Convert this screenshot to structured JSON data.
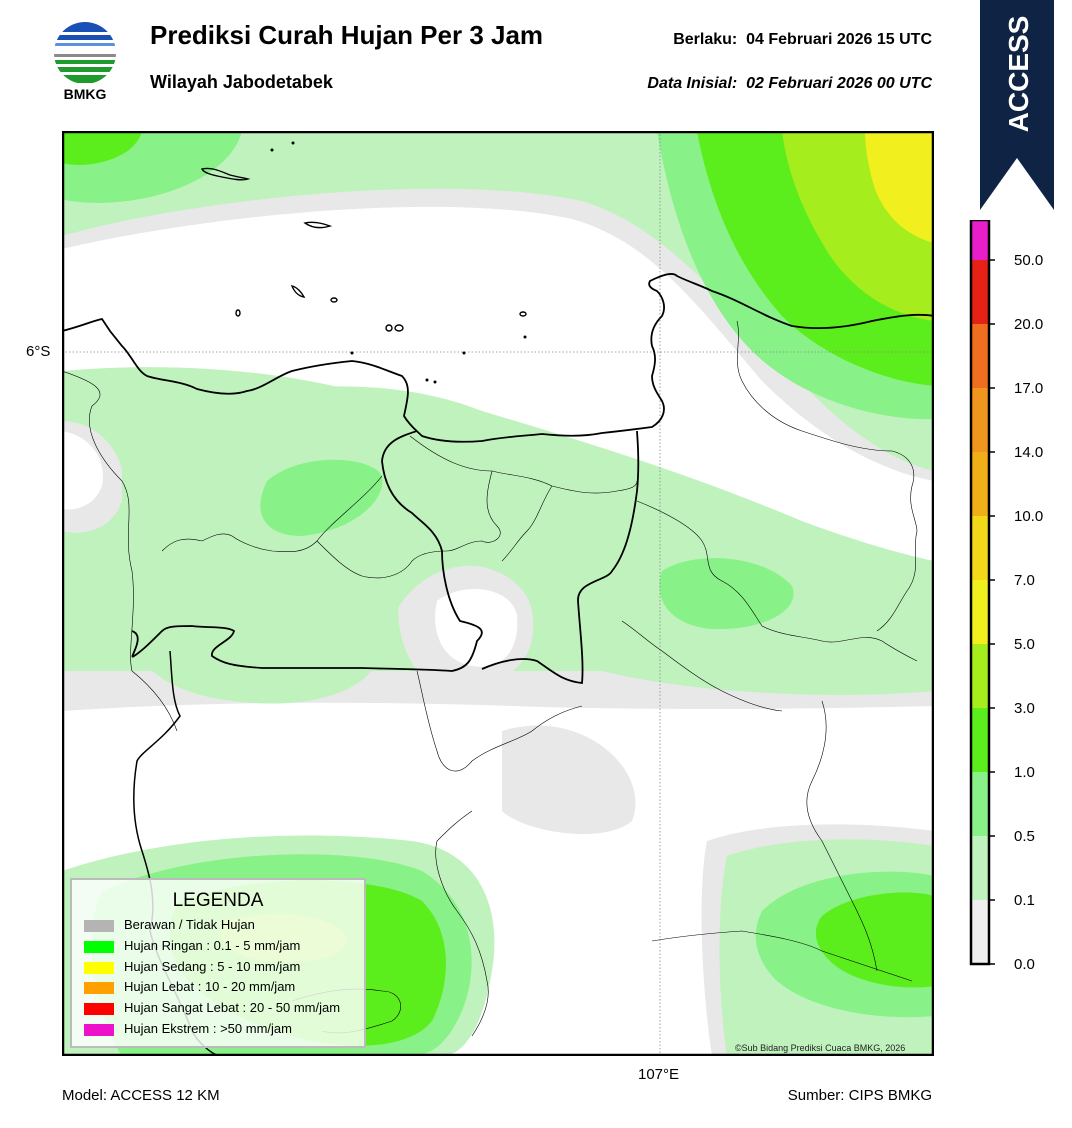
{
  "header": {
    "title": "Prediksi Curah Hujan Per 3 Jam",
    "subtitle": "Wilayah Jabodetabek",
    "valid_label": "Berlaku:",
    "valid_value": "04 Februari 2026 15 UTC",
    "initial_label": "Data Inisial:",
    "initial_value": "02 Februari 2026 00 UTC"
  },
  "logo": {
    "text": "BMKG",
    "icon": "bmkg-logo-icon"
  },
  "badge": {
    "text": "ACCESS",
    "color": "#0f2344"
  },
  "map": {
    "lat_label": "6°S",
    "lon_label": "107°E",
    "copyright": "©Sub Bidang Prediksi Cuaca BMKG, 2026",
    "shading_colors": {
      "0.0-0.1": "#e8e8e8",
      "0.1-0.5": "#c0f2bd",
      "0.5-1.0": "#88f288",
      "1.0-3.0": "#5ced1c",
      "3.0-5.0": "#a5ed1c",
      "5.0-7.0": "#f1f01e"
    }
  },
  "legend": {
    "title": "LEGENDA",
    "items": [
      {
        "label": "Berawan / Tidak Hujan",
        "color": "#b4b4b4"
      },
      {
        "label": "Hujan Ringan : 0.1 - 5 mm/jam",
        "color": "#00ff00"
      },
      {
        "label": "Hujan Sedang : 5 - 10 mm/jam",
        "color": "#ffff00"
      },
      {
        "label": "Hujan Lebat : 10 - 20 mm/jam",
        "color": "#ff9f00"
      },
      {
        "label": "Hujan Sangat Lebat : 20 - 50 mm/jam",
        "color": "#ff0000"
      },
      {
        "label": "Hujan Ekstrem : >50 mm/jam",
        "color": "#ee11cc"
      }
    ]
  },
  "colorbar": {
    "ticks": [
      "0.0",
      "0.1",
      "0.5",
      "1.0",
      "3.0",
      "5.0",
      "7.0",
      "10.0",
      "14.0",
      "17.0",
      "20.0",
      "50.0"
    ],
    "colors": [
      "#efefef",
      "#c0f2bd",
      "#88f288",
      "#5ced1c",
      "#a5ed1c",
      "#f1f01e",
      "#f2d818",
      "#f0ae18",
      "#f0951e",
      "#ef6e1f",
      "#e62217",
      "#e81ecb"
    ]
  },
  "footer": {
    "model": "Model: ACCESS 12 KM",
    "source": "Sumber: CIPS BMKG"
  }
}
